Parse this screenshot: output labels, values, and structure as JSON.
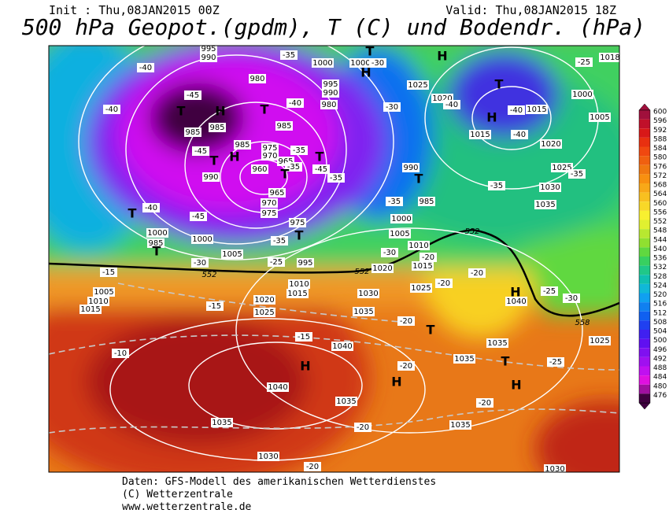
{
  "header": {
    "init": "Init : Thu,08JAN2015 00Z",
    "valid": "Valid: Thu,08JAN2015 18Z",
    "title": "500 hPa Geopot.(gpdm), T (C) und Bodendr. (hPa)"
  },
  "footer": [
    "Daten: GFS-Modell des amerikanischen Wetterdienstes",
    "(C) Wetterzentrale",
    "www.wetterzentrale.de"
  ],
  "colorbar": {
    "values": [
      600,
      596,
      592,
      588,
      584,
      580,
      576,
      572,
      568,
      564,
      560,
      556,
      552,
      548,
      544,
      540,
      536,
      532,
      528,
      524,
      520,
      516,
      512,
      508,
      504,
      500,
      496,
      492,
      488,
      484,
      480,
      476
    ],
    "colors": [
      "#a0103c",
      "#c0102a",
      "#d81818",
      "#e83010",
      "#f04810",
      "#f06010",
      "#f07810",
      "#f89010",
      "#f8a818",
      "#f8c020",
      "#f8d828",
      "#f8f030",
      "#e0f030",
      "#b8e830",
      "#90e030",
      "#60d840",
      "#38d060",
      "#20c888",
      "#10c0b0",
      "#10b8d8",
      "#10a0f0",
      "#1080f0",
      "#1060f0",
      "#2040f0",
      "#4020f0",
      "#6010f0",
      "#8010f0",
      "#a010f0",
      "#c010f0",
      "#e010e0",
      "#a010a0",
      "#400040"
    ]
  },
  "map": {
    "pressure_labels": [
      "995",
      "990",
      "1000",
      "1000",
      "980",
      "995",
      "990",
      "980",
      "985",
      "985",
      "985",
      "985",
      "975",
      "970",
      "965",
      "960",
      "990",
      "965",
      "970",
      "975",
      "975",
      "1000",
      "985",
      "1000",
      "1005",
      "995",
      "1010",
      "1015",
      "1005",
      "1010",
      "1015",
      "1020",
      "1025",
      "1030",
      "1035",
      "1040",
      "1040",
      "1035",
      "1035",
      "1030",
      "1025",
      "1020",
      "1015",
      "1015",
      "1020",
      "1025",
      "1030",
      "1035",
      "1000",
      "1005",
      "990",
      "985",
      "1000",
      "1005",
      "1010",
      "1015",
      "1020",
      "1025",
      "1040",
      "1035",
      "1035",
      "1035",
      "1030",
      "1025",
      "1018"
    ],
    "pressure_centers": [
      "T",
      "H",
      "T",
      "T",
      "H",
      "T",
      "T",
      "H",
      "T",
      "H",
      "T",
      "H",
      "T",
      "T",
      "T",
      "T",
      "H",
      "H",
      "T",
      "T",
      "H",
      "H"
    ],
    "temperature_labels": [
      "-40",
      "-45",
      "-40",
      "-45",
      "-40",
      "-35",
      "-45",
      "-40",
      "-35",
      "-35",
      "-45",
      "-35",
      "-30",
      "-30",
      "-40",
      "-40",
      "-40",
      "-25",
      "-35",
      "-35",
      "-35",
      "-30",
      "-35",
      "-25",
      "-20",
      "-20",
      "-20",
      "-30",
      "-15",
      "-15",
      "-15",
      "-10",
      "-20",
      "-20",
      "-20",
      "-25",
      "-20",
      "-20",
      "-25",
      "-30"
    ],
    "contour_labels": [
      "552",
      "552",
      "552",
      "558"
    ]
  }
}
